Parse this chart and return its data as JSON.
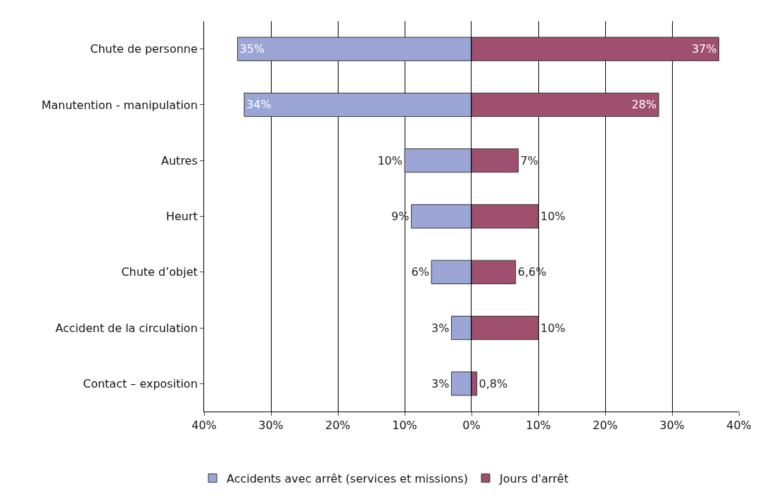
{
  "chart_data": [
    {
      "type": "bar",
      "orientation": "horizontal",
      "categories": [
        "Chute de personne",
        "Manutention - manipulation",
        "Autres",
        "Heurt",
        "Chute d’objet",
        "Accident de la circulation",
        "Contact – exposition"
      ],
      "series": [
        {
          "name": "Accidents avec arrêt (services et missions)",
          "color": "#9ba6d6",
          "values": [
            35,
            34,
            10,
            9,
            6,
            3,
            3
          ],
          "value_labels": [
            "35%",
            "34%",
            "10%",
            "9%",
            "6%",
            "3%",
            "3%"
          ]
        }
      ],
      "xlim": [
        40,
        0
      ],
      "xticks": [
        {
          "value": 40,
          "label": "40%"
        },
        {
          "value": 30,
          "label": "30%"
        },
        {
          "value": 20,
          "label": "20%"
        },
        {
          "value": 10,
          "label": "10%"
        },
        {
          "value": 0,
          "label": "0%"
        }
      ],
      "grid": "x",
      "legend": "bottom"
    },
    {
      "type": "bar",
      "orientation": "horizontal",
      "categories": [
        null,
        null,
        null,
        null,
        null,
        null,
        null
      ],
      "series": [
        {
          "name": "Jours d'arrêt",
          "color": "#a0506f",
          "values": [
            37,
            28,
            7,
            10,
            6.6,
            10,
            0.8
          ],
          "value_labels": [
            "37%",
            "28%",
            "7%",
            "10%",
            "6,6%",
            "10%",
            "0,8%"
          ]
        }
      ],
      "xlim": [
        0,
        40
      ],
      "xticks": [
        {
          "value": 0,
          "label": null
        },
        {
          "value": 10,
          "label": "10%"
        },
        {
          "value": 20,
          "label": "20%"
        },
        {
          "value": 30,
          "label": "30%"
        },
        {
          "value": 40,
          "label": "40%"
        }
      ],
      "grid": "x",
      "legend": "bottom",
      "tick_labels": "x"
    }
  ]
}
